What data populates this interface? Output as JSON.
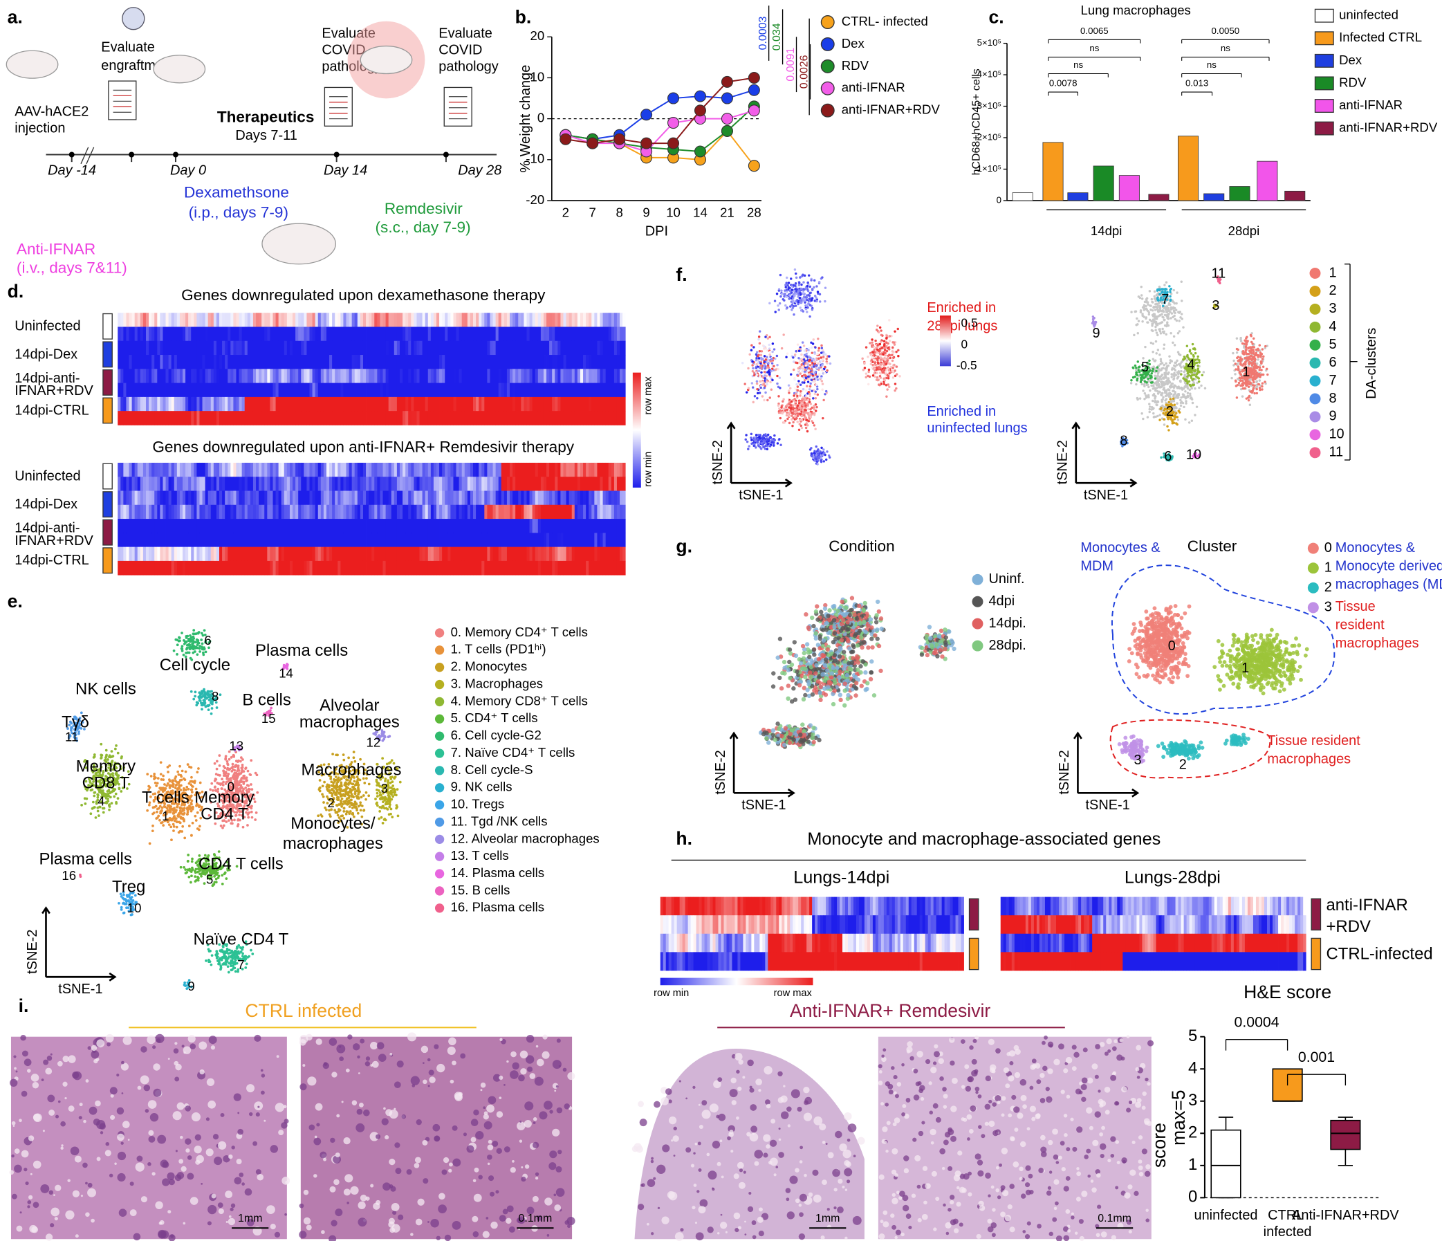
{
  "chart_data": [
    {
      "type": "line",
      "label": "b.",
      "ylabel": "% Weight change",
      "xlabel": "DPI",
      "categories": [
        "2",
        "7",
        "8",
        "9",
        "10",
        "14",
        "21",
        "28"
      ],
      "ylim": [
        -20,
        20
      ],
      "yticks": [
        -20,
        -10,
        0,
        10,
        20
      ],
      "series": [
        {
          "name": "CTRL- infected",
          "color": "#f7a21b",
          "values": [
            -4,
            -5,
            -6,
            -9.5,
            -9.5,
            -10,
            -3,
            -11.5
          ]
        },
        {
          "name": "Dex",
          "color": "#1a3ee8",
          "values": [
            -4,
            -5,
            -4,
            1,
            5,
            5.5,
            5,
            7
          ]
        },
        {
          "name": "RDV",
          "color": "#1e8c2a",
          "values": [
            -4,
            -5,
            -6,
            -7,
            -7.5,
            -8,
            -3,
            3
          ]
        },
        {
          "name": "anti-IFNAR",
          "color": "#f25ee8",
          "values": [
            -4,
            -6,
            -6,
            -8,
            -1,
            0,
            0,
            2
          ]
        },
        {
          "name": "anti-IFNAR+RDV",
          "color": "#8b1a1a",
          "values": [
            -5,
            -6,
            -5,
            -6,
            -6,
            2,
            9,
            10
          ]
        }
      ],
      "annotations": [
        "0.0003",
        "0.034",
        "0.0091",
        "0.0026"
      ]
    },
    {
      "type": "bar",
      "label": "c.",
      "title": "Lung macrophages",
      "ylabel": "hCD68+hCD45+ cells",
      "ylim": [
        0,
        500000
      ],
      "yticks": [
        0,
        {
          "value": 100000,
          "label": "1×10⁵"
        },
        {
          "value": 200000,
          "label": "2×10⁵"
        },
        {
          "value": 300000,
          "label": "3×10⁵"
        },
        {
          "value": 400000,
          "label": "4×10⁵"
        },
        {
          "value": 500000,
          "label": "5×10⁵"
        }
      ],
      "values": [
        25000,
        185000,
        25000,
        110000,
        80000,
        20000,
        205000,
        22000,
        45000,
        125000,
        30000
      ],
      "colors": [
        "#ffffff",
        "#f79a1c",
        "#1f3fe0",
        "#1a8a26",
        "#f255ea",
        "#8d1b45",
        "#f79a1c",
        "#1f3fe0",
        "#1a8a26",
        "#f255ea",
        "#8d1b45"
      ],
      "legend": [
        {
          "name": "uninfected",
          "color": "#ffffff"
        },
        {
          "name": "Infected CTRL",
          "color": "#f79a1c"
        },
        {
          "name": "Dex",
          "color": "#1f3fe0"
        },
        {
          "name": "RDV",
          "color": "#1a8a26"
        },
        {
          "name": "anti-IFNAR",
          "color": "#f255ea"
        },
        {
          "name": "anti-IFNAR+RDV",
          "color": "#8d1b45"
        }
      ],
      "groups": [
        "14dpi",
        "28dpi"
      ],
      "annotations": [
        "0.0065",
        "ns",
        "ns",
        "0.0078",
        "0.0050",
        "ns",
        "ns",
        "0.013"
      ]
    },
    {
      "type": "box",
      "label": "i.",
      "title": "H&E score",
      "ylabel": [
        "score",
        "max=5"
      ],
      "categories": [
        "uninfected",
        "CTRL infected",
        "Anti-IFNAR+RDV"
      ],
      "colors": [
        "#ffffff",
        "#f79a1c",
        "#8d1b45"
      ],
      "min": [
        0,
        3,
        1
      ],
      "q1": [
        0,
        3,
        1.5
      ],
      "median": [
        1,
        3,
        2
      ],
      "q3": [
        2.1,
        4,
        2.4
      ],
      "max": [
        2.5,
        4,
        2.5
      ],
      "ylim": [
        0,
        5
      ],
      "yticks": [
        0,
        1,
        2,
        3,
        4,
        5
      ],
      "annotations": [
        "0.0004",
        "0.001"
      ]
    }
  ],
  "figure": {
    "a": [
      "a.",
      "Evaluate",
      "engraftment",
      "Evaluate",
      "COVID",
      "pathology",
      "Evaluate",
      "COVID",
      "pathology",
      "AAV-hACE2",
      "injection",
      "Therapeutics",
      "Days 7-11",
      "Day -14",
      "Day 0",
      "Day 14",
      "Day 28",
      "Dexamethsone",
      "(i.p., days 7-9)",
      "Remdesivir",
      "(s.c., day 7-9)",
      "Anti-IFNAR",
      "(i.v., days 7&11)"
    ],
    "d": {
      "label": "d.",
      "titles": [
        "Genes downregulated upon dexamethasone therapy",
        "Genes downregulated upon anti-IFNAR+ Remdesivir therapy"
      ],
      "rows": [
        "Uninfected",
        "14dpi-Dex",
        "14dpi-anti-",
        "IFNAR+RDV",
        "14dpi-CTRL"
      ],
      "colorbar": [
        "row max",
        "row min"
      ]
    },
    "e": {
      "label": "e.",
      "legend": [
        "0.  Memory CD4⁺ T cells",
        "1.  T  cells (PD1ʰⁱ)",
        "2.  Monocytes",
        "3.  Macrophages",
        "4.  Memory CD8⁺ T cells",
        "5.  CD4⁺ T cells",
        "6.  Cell cycle-G2",
        "7.  Naïve CD4⁺ T cells",
        "8.  Cell cycle-S",
        "9.  NK cells",
        "10. Tregs",
        "11. Tgd /NK cells",
        "12. Alveolar macrophages",
        "13. T cells",
        "14. Plasma cells",
        "15. B cells",
        "16. Plasma cells"
      ],
      "plot_labels": [
        "6",
        "Plasma cells",
        "Cell cycle",
        "14",
        "NK cells",
        "8",
        "B cells",
        "15",
        "Alveolar",
        "macrophages",
        "Tγδ",
        "12",
        "11",
        "13",
        "Memory",
        "CD8 T",
        "Macrophages",
        "0",
        "T cells",
        "Memory",
        "3",
        "CD4 T",
        "1",
        "4",
        "2",
        "Monocytes/",
        "macrophages",
        "Plasma cells",
        "16",
        "CD4 T cells",
        "5",
        "Treg",
        "10",
        "Naïve CD4 T",
        "7",
        "9"
      ],
      "axes": [
        "tSNE-1",
        "tSNE-2"
      ]
    },
    "f": {
      "label": "f.",
      "texts": [
        "Enriched in",
        "28dpi lungs",
        "0.5",
        "0",
        "-0.5",
        "Enriched in",
        "uninfected lungs"
      ],
      "plot_labels": [
        "11",
        "7",
        "3",
        "9",
        "5",
        "4",
        "1",
        "2",
        "8",
        "6",
        "10"
      ],
      "legend": [
        "1",
        "2",
        "3",
        "4",
        "5",
        "6",
        "7",
        "8",
        "9",
        "10",
        "11"
      ],
      "legend_title": "DA-clusters",
      "axes": [
        "tSNE-1",
        "tSNE-2"
      ]
    },
    "g": {
      "label": "g.",
      "titles": [
        "Condition",
        "Cluster"
      ],
      "legend": [
        "Uninf.",
        "4dpi",
        "14dpi.",
        "28dpi."
      ],
      "cluster_legend": [
        "0",
        "1",
        "2",
        "3"
      ],
      "groups": [
        "Monocytes &",
        "Monocyte derived",
        "macrophages (MDM)",
        "Tissue",
        "resident",
        "macrophages"
      ],
      "plot_labels": [
        "Monocytes &",
        "MDM",
        "0",
        "1",
        "3",
        "2",
        "Tissue resident",
        "macrophages"
      ],
      "axes": [
        "tSNE-1",
        "tSNE-2"
      ]
    },
    "h": {
      "label": "h.",
      "title": "Monocyte and macrophage-associated genes",
      "subtitles": [
        "Lungs-14dpi",
        "Lungs-28dpi"
      ],
      "rows": [
        "anti-IFNAR",
        "+RDV",
        "CTRL-infected"
      ],
      "colorbar": [
        "row min",
        "row max"
      ]
    },
    "i": {
      "titles": [
        "CTRL infected",
        "Anti-IFNAR+ Remdesivir"
      ],
      "scales": [
        "1mm",
        "0.1mm",
        "1mm",
        "0.1mm"
      ]
    }
  }
}
